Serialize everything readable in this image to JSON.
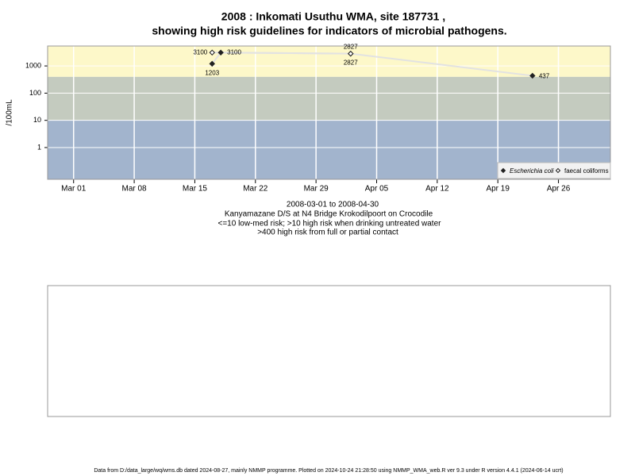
{
  "chart_data": {
    "type": "line",
    "title": "2008 : Inkomati Usuthu WMA, site 187731 ,",
    "title2": "showing high risk guidelines for indicators of microbial pathogens.",
    "y_label": "/100mL",
    "subtitle": [
      "2008-03-01 to 2008-04-30",
      "Kanyamazane D/S at N4 Bridge Krokodilpoort on Crocodile",
      "<=10 low-med risk; >10 high risk when drinking untreated water",
      ">400 high risk from full or partial contact"
    ],
    "footer": "Data from D:/data_large/wq/wms.db dated 2024-08-27, mainly NMMP programme. Plotted on 2024-10-24 21:28:50 using NMMP_WMA_web.R ver 9.3 under R version 4.4.1 (2024-06-14 ucrt)",
    "log_y": true,
    "ylim": [
      0.068,
      5400
    ],
    "yticks": [
      1,
      10,
      100,
      1000
    ],
    "xlim": [
      "2008-02-27",
      "2008-05-02"
    ],
    "xticks": [
      {
        "value": "2008-03-01",
        "label": "Mar 01"
      },
      {
        "value": "2008-03-08",
        "label": "Mar 08"
      },
      {
        "value": "2008-03-15",
        "label": "Mar 15"
      },
      {
        "value": "2008-03-22",
        "label": "Mar 22"
      },
      {
        "value": "2008-03-29",
        "label": "Mar 29"
      },
      {
        "value": "2008-04-05",
        "label": "Apr 05"
      },
      {
        "value": "2008-04-12",
        "label": "Apr 12"
      },
      {
        "value": "2008-04-19",
        "label": "Apr 19"
      },
      {
        "value": "2008-04-26",
        "label": "Apr 26"
      }
    ],
    "band_limits": [
      10,
      400
    ],
    "band_colors": [
      "#a2b4cd",
      "#c4cbbf",
      "#fdf8c9"
    ],
    "grid": true,
    "legend_position": "bottom-right",
    "series": [
      {
        "name": "Escherichia coli",
        "color": "#222222",
        "marker": "filled",
        "x": [
          "2008-03-17",
          "2008-03-18",
          "2008-04-02",
          "2008-04-23"
        ],
        "values": [
          1203,
          3100,
          2827,
          437
        ]
      },
      {
        "name": "faecal coliforms",
        "color": "#222222",
        "marker": "open",
        "x": [
          "2008-03-17",
          "2008-04-02"
        ],
        "values": [
          3100,
          2827
        ]
      }
    ]
  }
}
